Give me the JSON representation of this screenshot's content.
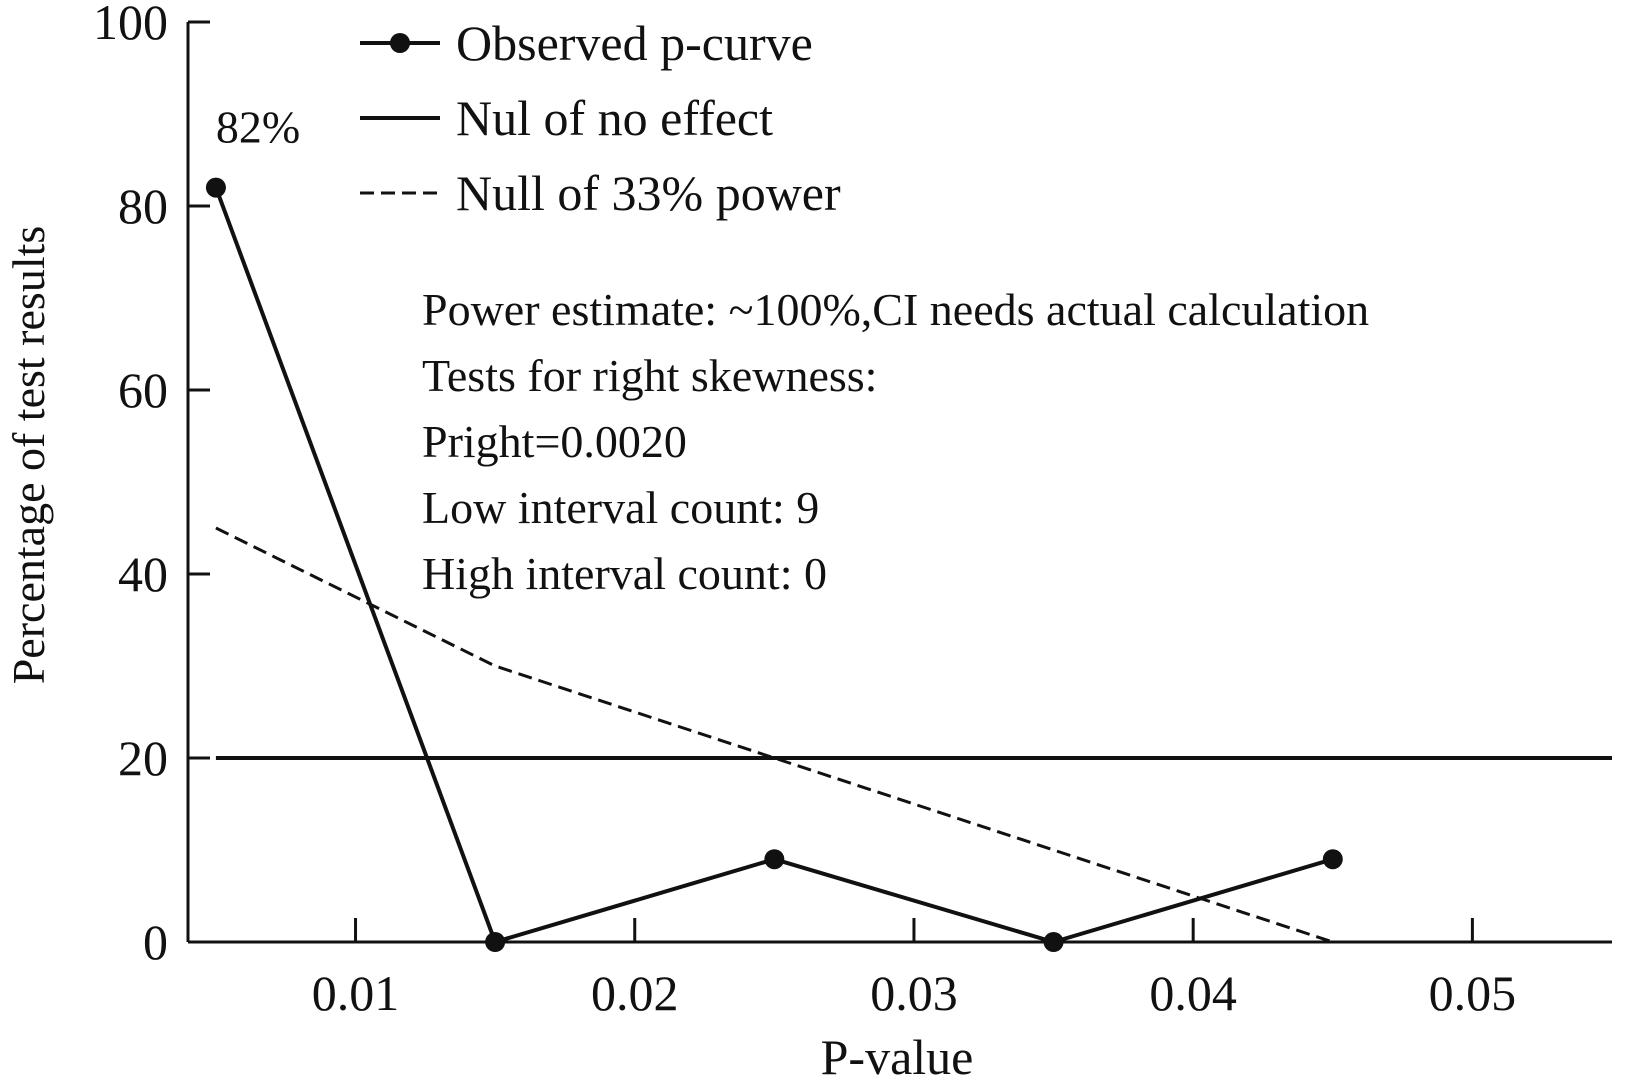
{
  "chart_data": {
    "type": "line",
    "xlabel": "P-value",
    "ylabel": "Percentage of test results",
    "xlim": [
      0.004,
      0.055
    ],
    "ylim": [
      0,
      100
    ],
    "xticks": [
      0.01,
      0.02,
      0.03,
      0.04,
      0.05
    ],
    "xtick_labels": [
      "0.01",
      "0.02",
      "0.03",
      "0.04",
      "0.05"
    ],
    "yticks": [
      0,
      20,
      40,
      60,
      80,
      100
    ],
    "ytick_labels": [
      "0",
      "20",
      "40",
      "60",
      "80",
      "100"
    ],
    "grid": false,
    "legend_position": "top-left",
    "series": [
      {
        "name": "Observed p-curve",
        "style": "solid-with-markers",
        "color": "#111111",
        "x": [
          0.005,
          0.015,
          0.025,
          0.035,
          0.045
        ],
        "y": [
          82,
          0,
          9,
          0,
          9
        ]
      },
      {
        "name": "Nul of no effect",
        "style": "solid",
        "color": "#111111",
        "x": [
          0.005,
          0.055
        ],
        "y": [
          20,
          20
        ]
      },
      {
        "name": "Null of 33% power",
        "style": "dashed",
        "color": "#111111",
        "x": [
          0.005,
          0.015,
          0.025,
          0.035,
          0.045
        ],
        "y": [
          45,
          30,
          20,
          10,
          0
        ]
      }
    ],
    "data_labels": [
      {
        "text": "82%",
        "x": 0.005,
        "y": 82
      }
    ],
    "annotations": [
      "Power estimate: ~100%,CI needs actual calculation",
      "Tests for right skewness:",
      "Pright=0.0020",
      "Low interval count: 9",
      "High interval count: 0"
    ]
  }
}
